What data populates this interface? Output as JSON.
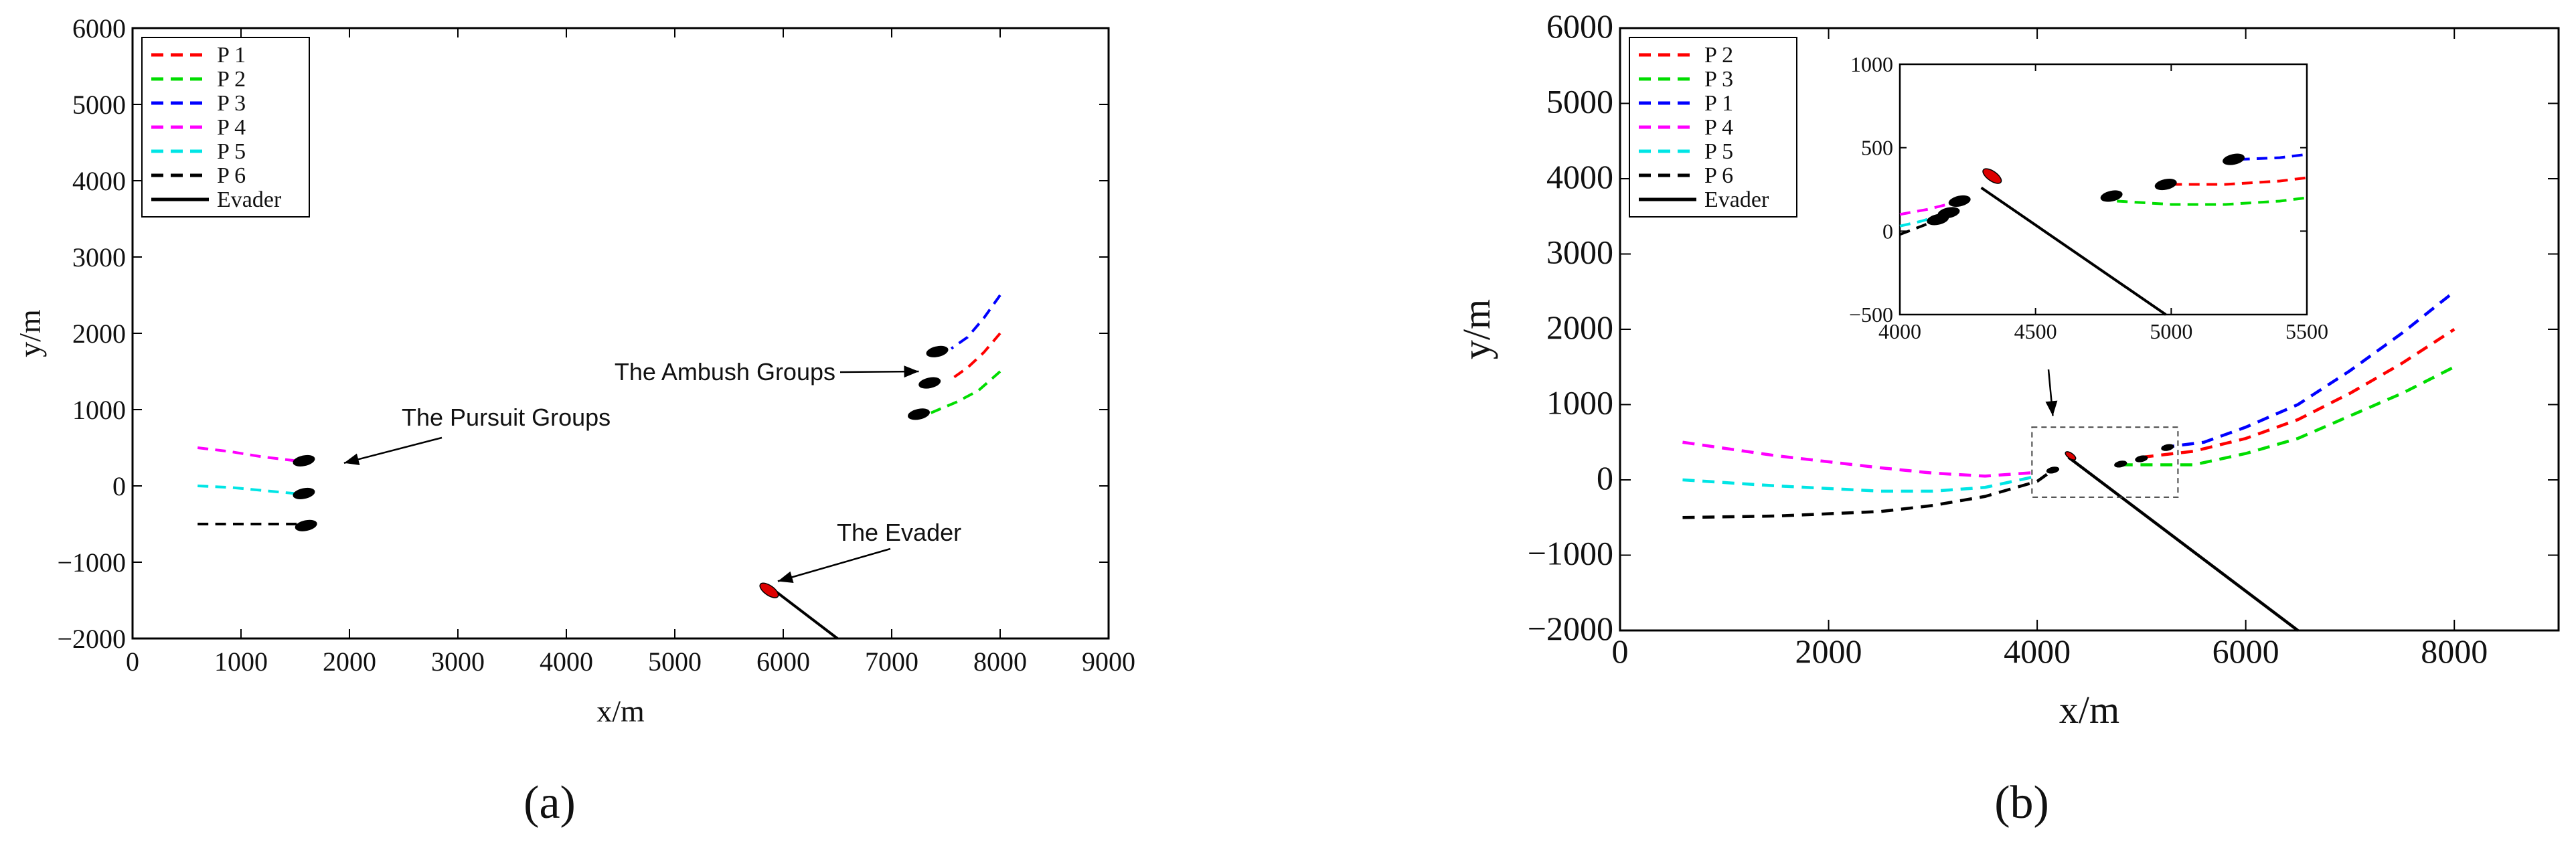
{
  "panel_labels": {
    "a": "(a)",
    "b": "(b)"
  },
  "chart_data": [
    {
      "type": "line",
      "panel": "(a)",
      "xlabel": "x/m",
      "ylabel": "y/m",
      "xlim": [
        0,
        9000
      ],
      "ylim": [
        -2000,
        6000
      ],
      "xticks": [
        0,
        1000,
        2000,
        3000,
        4000,
        5000,
        6000,
        7000,
        8000,
        9000
      ],
      "yticks": [
        -2000,
        -1000,
        0,
        1000,
        2000,
        3000,
        4000,
        5000,
        6000
      ],
      "grid": false,
      "legend_position": "top-left",
      "series": [
        {
          "name": "P 1",
          "color": "#ff0000",
          "style": "dashed",
          "x": [
            8000,
            7850,
            7700,
            7550
          ],
          "y": [
            2000,
            1750,
            1550,
            1400
          ]
        },
        {
          "name": "P 2",
          "color": "#00dd00",
          "style": "dashed",
          "x": [
            8000,
            7800,
            7600,
            7350
          ],
          "y": [
            1500,
            1250,
            1100,
            950
          ]
        },
        {
          "name": "P 3",
          "color": "#0000ff",
          "style": "dashed",
          "x": [
            8000,
            7850,
            7700,
            7550
          ],
          "y": [
            2500,
            2200,
            1950,
            1800
          ]
        },
        {
          "name": "P 4",
          "color": "#ff00ff",
          "style": "dashed",
          "x": [
            600,
            900,
            1200,
            1500
          ],
          "y": [
            500,
            450,
            380,
            330
          ]
        },
        {
          "name": "P 5",
          "color": "#00e5e5",
          "style": "dashed",
          "x": [
            600,
            900,
            1200,
            1500
          ],
          "y": [
            0,
            -20,
            -60,
            -100
          ]
        },
        {
          "name": "P 6",
          "color": "#000000",
          "style": "dashed",
          "x": [
            600,
            1000,
            1300,
            1550
          ],
          "y": [
            -500,
            -500,
            -500,
            -500
          ]
        },
        {
          "name": "Evader",
          "color": "#000000",
          "style": "solid",
          "x": [
            5900,
            6500
          ],
          "y": [
            -1350,
            -2000
          ]
        }
      ],
      "markers": [
        {
          "label": "pursuer",
          "color": "#000000",
          "x": 1580,
          "y": 330
        },
        {
          "label": "pursuer",
          "color": "#000000",
          "x": 1580,
          "y": -100
        },
        {
          "label": "pursuer",
          "color": "#000000",
          "x": 1600,
          "y": -520
        },
        {
          "label": "pursuer",
          "color": "#000000",
          "x": 7420,
          "y": 1760
        },
        {
          "label": "pursuer",
          "color": "#000000",
          "x": 7350,
          "y": 1350
        },
        {
          "label": "pursuer",
          "color": "#000000",
          "x": 7250,
          "y": 940
        },
        {
          "label": "evader",
          "color": "#dd0000",
          "x": 5870,
          "y": -1370
        }
      ],
      "annotations": [
        {
          "text": "The Pursuit Groups",
          "arrow_to": [
            1950,
            300
          ]
        },
        {
          "text": "The Ambush Groups",
          "arrow_to": [
            7250,
            1500
          ]
        },
        {
          "text": "The Evader",
          "arrow_to": [
            5950,
            -1250
          ]
        }
      ]
    },
    {
      "type": "line",
      "panel": "(b)",
      "xlabel": "x/m",
      "ylabel": "y/m",
      "xlim": [
        0,
        9000
      ],
      "ylim": [
        -2000,
        6000
      ],
      "xticks": [
        0,
        2000,
        4000,
        6000,
        8000
      ],
      "yticks": [
        -2000,
        -1000,
        0,
        1000,
        2000,
        3000,
        4000,
        5000,
        6000
      ],
      "grid": false,
      "legend_position": "top-left",
      "series": [
        {
          "name": "P 2",
          "color": "#ff0000",
          "style": "dashed",
          "x": [
            5000,
            5500,
            6000,
            6500,
            7000,
            7500,
            8000
          ],
          "y": [
            300,
            380,
            550,
            800,
            1150,
            1550,
            2000
          ]
        },
        {
          "name": "P 3",
          "color": "#00dd00",
          "style": "dashed",
          "x": [
            4800,
            5500,
            6000,
            6500,
            7000,
            7500,
            8000
          ],
          "y": [
            200,
            200,
            350,
            550,
            850,
            1150,
            1500
          ]
        },
        {
          "name": "P 1",
          "color": "#0000ff",
          "style": "dashed",
          "x": [
            5200,
            5600,
            6000,
            6500,
            7000,
            7500,
            8000
          ],
          "y": [
            430,
            500,
            700,
            1000,
            1450,
            1950,
            2500
          ]
        },
        {
          "name": "P 4",
          "color": "#ff00ff",
          "style": "dashed",
          "x": [
            600,
            1500,
            2500,
            3000,
            3500,
            4000
          ],
          "y": [
            500,
            320,
            160,
            90,
            50,
            100
          ]
        },
        {
          "name": "P 5",
          "color": "#00e5e5",
          "style": "dashed",
          "x": [
            600,
            1500,
            2500,
            3000,
            3500,
            4000
          ],
          "y": [
            0,
            -80,
            -150,
            -150,
            -100,
            50
          ]
        },
        {
          "name": "P 6",
          "color": "#000000",
          "style": "dashed",
          "x": [
            600,
            1500,
            2500,
            3000,
            3500,
            4000,
            4150
          ],
          "y": [
            -500,
            -480,
            -420,
            -340,
            -220,
            -20,
            130
          ]
        },
        {
          "name": "Evader",
          "color": "#000000",
          "style": "solid",
          "x": [
            4300,
            6500
          ],
          "y": [
            300,
            -2000
          ]
        }
      ],
      "annotations": [
        {
          "text": "",
          "arrow_to": [
            4150,
            850
          ]
        }
      ],
      "inset": {
        "xlim": [
          4000,
          5500
        ],
        "ylim": [
          -500,
          1000
        ],
        "xticks": [
          4000,
          4500,
          5000,
          5500
        ],
        "yticks": [
          -500,
          0,
          500,
          1000
        ],
        "zoom_box_x": [
          3950,
          5350
        ],
        "zoom_box_y": [
          -230,
          700
        ],
        "series": [
          {
            "name": "P 2",
            "color": "#ff0000",
            "style": "dashed",
            "x": [
              5000,
              5200,
              5400,
              5500
            ],
            "y": [
              280,
              280,
              300,
              320
            ]
          },
          {
            "name": "P 3",
            "color": "#00dd00",
            "style": "dashed",
            "x": [
              4800,
              5000,
              5200,
              5400,
              5500
            ],
            "y": [
              180,
              160,
              160,
              180,
              200
            ]
          },
          {
            "name": "P 1",
            "color": "#0000ff",
            "style": "dashed",
            "x": [
              5250,
              5400,
              5500
            ],
            "y": [
              430,
              440,
              460
            ]
          },
          {
            "name": "P 4",
            "color": "#ff00ff",
            "style": "dashed",
            "x": [
              4000,
              4100,
              4200
            ],
            "y": [
              100,
              130,
              170
            ]
          },
          {
            "name": "P 5",
            "color": "#00e5e5",
            "style": "dashed",
            "x": [
              4000,
              4080,
              4180
            ],
            "y": [
              30,
              60,
              110
            ]
          },
          {
            "name": "P 6",
            "color": "#000000",
            "style": "dashed",
            "x": [
              4000,
              4080,
              4160
            ],
            "y": [
              -20,
              30,
              80
            ]
          },
          {
            "name": "Evader",
            "color": "#000000",
            "style": "solid",
            "x": [
              4300,
              4980
            ],
            "y": [
              260,
              -500
            ]
          }
        ],
        "markers": [
          {
            "label": "pursuer",
            "color": "#000000",
            "x": 4780,
            "y": 210
          },
          {
            "label": "pursuer",
            "color": "#000000",
            "x": 4980,
            "y": 280
          },
          {
            "label": "pursuer",
            "color": "#000000",
            "x": 5230,
            "y": 430
          },
          {
            "label": "pursuer",
            "color": "#000000",
            "x": 4220,
            "y": 180
          },
          {
            "label": "pursuer",
            "color": "#000000",
            "x": 4180,
            "y": 110
          },
          {
            "label": "pursuer",
            "color": "#000000",
            "x": 4140,
            "y": 70
          },
          {
            "label": "evader",
            "color": "#dd0000",
            "x": 4340,
            "y": 330
          }
        ]
      },
      "markers": [
        {
          "label": "pursuer",
          "color": "#000000",
          "x": 4800,
          "y": 210
        },
        {
          "label": "pursuer",
          "color": "#000000",
          "x": 5000,
          "y": 280
        },
        {
          "label": "pursuer",
          "color": "#000000",
          "x": 5250,
          "y": 430
        },
        {
          "label": "pursuer",
          "color": "#000000",
          "x": 4150,
          "y": 130
        },
        {
          "label": "evader",
          "color": "#dd0000",
          "x": 4320,
          "y": 320
        }
      ]
    }
  ]
}
